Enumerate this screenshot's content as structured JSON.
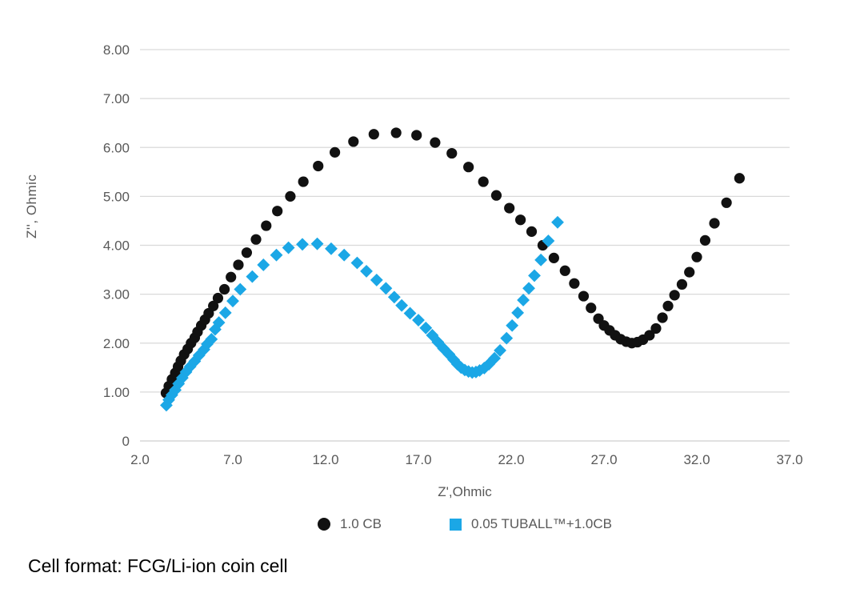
{
  "figure": {
    "caption": "Cell format: FCG/Li-ion coin cell"
  },
  "colors": {
    "background": "#FFFFFF",
    "gridline": "#D9D9D9",
    "baseline": "#CFCFCF",
    "axis_text": "#595959",
    "caption_text": "#000000",
    "series_black": "#111111",
    "series_blue": "#1BA7E6"
  },
  "chart_data": {
    "type": "scatter",
    "title": "",
    "xlabel": "Z',Ohmic",
    "ylabel": "Z'', Ohmic",
    "xlim": [
      2,
      37
    ],
    "ylim": [
      0,
      8
    ],
    "x_ticks": [
      "2.0",
      "7.0",
      "12.0",
      "17.0",
      "22.0",
      "27.0",
      "32.0",
      "37.0"
    ],
    "y_ticks": [
      "0",
      "1.00",
      "2.00",
      "3.00",
      "4.00",
      "5.00",
      "6.00",
      "7.00",
      "8.00"
    ],
    "grid": "horizontal",
    "legend_position": "bottom",
    "series": [
      {
        "name": "1.0 CB",
        "marker": "circle",
        "color": "#111111",
        "points": [
          [
            3.4,
            0.98
          ],
          [
            3.55,
            1.12
          ],
          [
            3.72,
            1.26
          ],
          [
            3.9,
            1.39
          ],
          [
            4.05,
            1.52
          ],
          [
            4.2,
            1.64
          ],
          [
            4.38,
            1.77
          ],
          [
            4.57,
            1.88
          ],
          [
            4.75,
            2.0
          ],
          [
            4.95,
            2.11
          ],
          [
            5.1,
            2.23
          ],
          [
            5.3,
            2.36
          ],
          [
            5.5,
            2.48
          ],
          [
            5.7,
            2.61
          ],
          [
            5.95,
            2.76
          ],
          [
            6.2,
            2.92
          ],
          [
            6.55,
            3.1
          ],
          [
            6.9,
            3.35
          ],
          [
            7.3,
            3.6
          ],
          [
            7.75,
            3.85
          ],
          [
            8.25,
            4.12
          ],
          [
            8.8,
            4.4
          ],
          [
            9.4,
            4.7
          ],
          [
            10.1,
            5.0
          ],
          [
            10.8,
            5.3
          ],
          [
            11.6,
            5.62
          ],
          [
            12.5,
            5.9
          ],
          [
            13.5,
            6.12
          ],
          [
            14.6,
            6.27
          ],
          [
            15.8,
            6.3
          ],
          [
            16.9,
            6.25
          ],
          [
            17.9,
            6.1
          ],
          [
            18.8,
            5.88
          ],
          [
            19.7,
            5.6
          ],
          [
            20.5,
            5.3
          ],
          [
            21.2,
            5.02
          ],
          [
            21.9,
            4.76
          ],
          [
            22.5,
            4.52
          ],
          [
            23.1,
            4.28
          ],
          [
            23.7,
            4.0
          ],
          [
            24.3,
            3.74
          ],
          [
            24.9,
            3.48
          ],
          [
            25.4,
            3.22
          ],
          [
            25.9,
            2.96
          ],
          [
            26.3,
            2.72
          ],
          [
            26.7,
            2.5
          ],
          [
            27.0,
            2.36
          ],
          [
            27.3,
            2.26
          ],
          [
            27.6,
            2.16
          ],
          [
            27.9,
            2.08
          ],
          [
            28.2,
            2.03
          ],
          [
            28.5,
            2.0
          ],
          [
            28.8,
            2.02
          ],
          [
            29.1,
            2.07
          ],
          [
            29.45,
            2.16
          ],
          [
            29.8,
            2.3
          ],
          [
            30.15,
            2.52
          ],
          [
            30.45,
            2.76
          ],
          [
            30.8,
            2.98
          ],
          [
            31.2,
            3.2
          ],
          [
            31.6,
            3.45
          ],
          [
            32.0,
            3.76
          ],
          [
            32.45,
            4.1
          ],
          [
            32.95,
            4.45
          ],
          [
            33.6,
            4.87
          ],
          [
            34.3,
            5.37
          ]
        ]
      },
      {
        "name": "0.05 TUBALL™+1.0CB",
        "marker": "diamond",
        "legend_marker": "square",
        "color": "#1BA7E6",
        "points": [
          [
            3.42,
            0.73
          ],
          [
            3.55,
            0.84
          ],
          [
            3.72,
            0.94
          ],
          [
            3.9,
            1.04
          ],
          [
            4.08,
            1.17
          ],
          [
            4.28,
            1.29
          ],
          [
            4.48,
            1.41
          ],
          [
            4.7,
            1.52
          ],
          [
            4.95,
            1.63
          ],
          [
            5.18,
            1.75
          ],
          [
            5.45,
            1.87
          ],
          [
            5.62,
            1.98
          ],
          [
            5.85,
            2.08
          ],
          [
            6.05,
            2.28
          ],
          [
            6.25,
            2.42
          ],
          [
            6.6,
            2.62
          ],
          [
            7.0,
            2.86
          ],
          [
            7.4,
            3.1
          ],
          [
            8.05,
            3.36
          ],
          [
            8.65,
            3.6
          ],
          [
            9.35,
            3.8
          ],
          [
            10.0,
            3.95
          ],
          [
            10.75,
            4.02
          ],
          [
            11.55,
            4.03
          ],
          [
            12.3,
            3.93
          ],
          [
            13.0,
            3.8
          ],
          [
            13.7,
            3.64
          ],
          [
            14.2,
            3.47
          ],
          [
            14.75,
            3.29
          ],
          [
            15.25,
            3.12
          ],
          [
            15.7,
            2.94
          ],
          [
            16.1,
            2.77
          ],
          [
            16.55,
            2.61
          ],
          [
            17.0,
            2.47
          ],
          [
            17.4,
            2.31
          ],
          [
            17.75,
            2.16
          ],
          [
            18.05,
            2.02
          ],
          [
            18.35,
            1.89
          ],
          [
            18.65,
            1.77
          ],
          [
            18.9,
            1.66
          ],
          [
            19.1,
            1.57
          ],
          [
            19.3,
            1.5
          ],
          [
            19.5,
            1.45
          ],
          [
            19.7,
            1.42
          ],
          [
            19.9,
            1.4
          ],
          [
            20.1,
            1.41
          ],
          [
            20.3,
            1.44
          ],
          [
            20.55,
            1.49
          ],
          [
            20.8,
            1.57
          ],
          [
            21.1,
            1.69
          ],
          [
            21.4,
            1.85
          ],
          [
            21.75,
            2.1
          ],
          [
            22.05,
            2.36
          ],
          [
            22.35,
            2.62
          ],
          [
            22.65,
            2.88
          ],
          [
            22.95,
            3.12
          ],
          [
            23.25,
            3.38
          ],
          [
            23.6,
            3.7
          ],
          [
            24.0,
            4.09
          ],
          [
            24.5,
            4.47
          ]
        ]
      }
    ]
  }
}
